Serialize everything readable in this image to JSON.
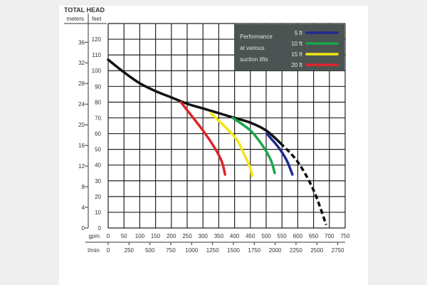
{
  "chart_data": {
    "type": "line",
    "title": "TOTAL HEAD",
    "y_units": {
      "left": "meters",
      "right": "feet"
    },
    "x_units": {
      "primary": "gpm",
      "secondary": "l/min"
    },
    "xlim": [
      0,
      750
    ],
    "ylim": [
      0,
      130
    ],
    "grid": true,
    "feet_ticks": [
      0,
      10,
      20,
      30,
      40,
      50,
      60,
      70,
      80,
      90,
      100,
      110,
      120
    ],
    "meter_ticks": [
      0,
      4,
      8,
      12,
      16,
      20,
      24,
      28,
      32,
      36
    ],
    "gpm_ticks": [
      0,
      50,
      100,
      150,
      200,
      250,
      300,
      350,
      400,
      450,
      500,
      550,
      600,
      650,
      700,
      750
    ],
    "lpm_ticks": [
      0,
      250,
      500,
      750,
      1000,
      1250,
      1500,
      1750,
      2000,
      2250,
      2500,
      2750
    ],
    "legend": {
      "title_lines": [
        "Performance",
        "at various",
        "suction lifts"
      ],
      "placement": "top-right",
      "entries": [
        {
          "label": "5 ft",
          "color": "#1f2a8c"
        },
        {
          "label": "10 ft",
          "color": "#1aa64a"
        },
        {
          "label": "15 ft",
          "color": "#f2e614"
        },
        {
          "label": "20 ft",
          "color": "#e0242b"
        }
      ]
    },
    "series": [
      {
        "color": "#111111",
        "style": "solid",
        "points": [
          [
            0,
            107
          ],
          [
            50,
            99
          ],
          [
            100,
            92
          ],
          [
            150,
            87
          ],
          [
            200,
            83
          ],
          [
            250,
            79
          ],
          [
            300,
            76
          ],
          [
            350,
            73
          ],
          [
            400,
            70
          ],
          [
            450,
            67
          ],
          [
            500,
            62
          ],
          [
            545,
            54
          ]
        ]
      },
      {
        "color": "#111111",
        "style": "dashed",
        "points": [
          [
            545,
            54
          ],
          [
            600,
            42
          ],
          [
            650,
            24
          ],
          [
            690,
            2
          ]
        ]
      },
      {
        "name": "5 ft",
        "color": "#1f2a8c",
        "style": "solid",
        "points": [
          [
            502,
            60
          ],
          [
            540,
            51
          ],
          [
            565,
            43
          ],
          [
            583,
            34
          ]
        ]
      },
      {
        "name": "10 ft",
        "color": "#1aa64a",
        "style": "solid",
        "points": [
          [
            394,
            70
          ],
          [
            450,
            62
          ],
          [
            490,
            52
          ],
          [
            515,
            43
          ],
          [
            527,
            35
          ]
        ]
      },
      {
        "name": "15 ft",
        "color": "#f2e614",
        "style": "solid",
        "points": [
          [
            325,
            73
          ],
          [
            400,
            58
          ],
          [
            430,
            47
          ],
          [
            450,
            38
          ],
          [
            455,
            33
          ]
        ]
      },
      {
        "name": "20 ft",
        "color": "#e0242b",
        "style": "solid",
        "points": [
          [
            230,
            80
          ],
          [
            300,
            62
          ],
          [
            340,
            50
          ],
          [
            360,
            42
          ],
          [
            370,
            34
          ]
        ]
      }
    ]
  }
}
